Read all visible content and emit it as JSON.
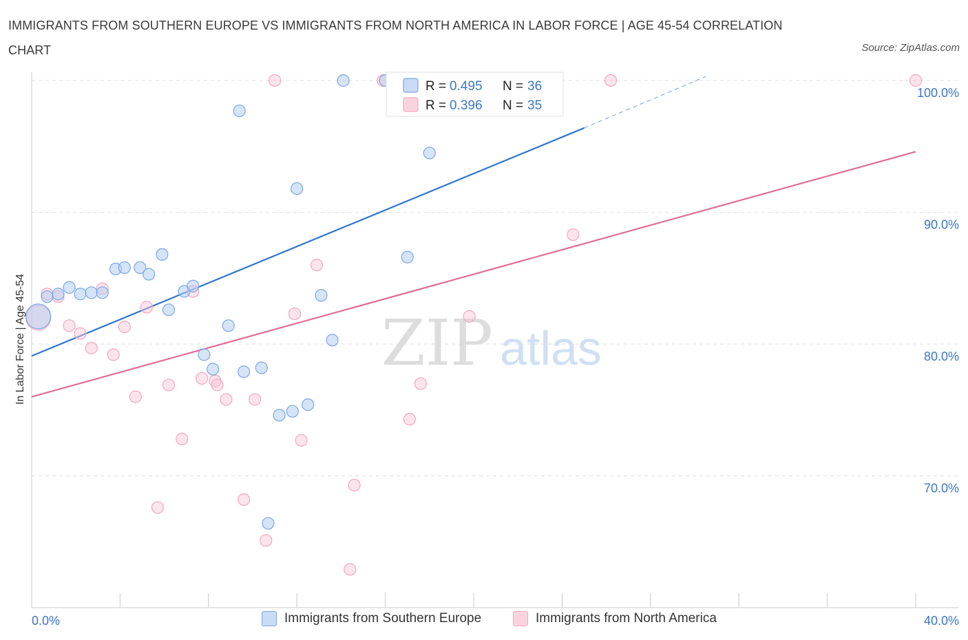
{
  "title": "IMMIGRANTS FROM SOUTHERN EUROPE VS IMMIGRANTS FROM NORTH AMERICA IN LABOR FORCE | AGE 45-54 CORRELATION CHART",
  "source": "Source: ZipAtlas.com",
  "watermark": {
    "zip": "ZIP",
    "atlas": "atlas"
  },
  "legend_stats": {
    "r_label": "R =",
    "n_label": "N =",
    "items": [
      {
        "r": "0.495",
        "n": "36"
      },
      {
        "r": "0.396",
        "n": "35"
      }
    ]
  },
  "chart_data": {
    "type": "scatter",
    "title": "IMMIGRANTS FROM SOUTHERN EUROPE VS IMMIGRANTS FROM NORTH AMERICA IN LABOR FORCE | AGE 45-54 CORRELATION CHART",
    "xlabel": "",
    "ylabel": "In Labor Force | Age 45-54",
    "xlim": [
      0,
      40
    ],
    "ylim": [
      60,
      100
    ],
    "x_tick_labels": [
      "0.0%",
      "40.0%"
    ],
    "y_ticks": [
      70,
      80,
      90,
      100
    ],
    "y_tick_labels": [
      "70.0%",
      "80.0%",
      "90.0%",
      "100.0%"
    ],
    "grid": true,
    "legend_position": "bottom",
    "series": [
      {
        "name": "Immigrants from Southern Europe",
        "color": "#7aa7e6",
        "line_color": "#2f74d0",
        "r": 0.495,
        "n": 36,
        "trend": {
          "x": [
            0,
            25
          ],
          "y": [
            79.1,
            96.4
          ],
          "dashed_to": [
            30.5,
            100.3
          ]
        },
        "points": [
          {
            "x": 0.3,
            "y": 82.1,
            "big": true
          },
          {
            "x": 0.7,
            "y": 83.6
          },
          {
            "x": 1.2,
            "y": 83.8
          },
          {
            "x": 1.7,
            "y": 84.3
          },
          {
            "x": 2.2,
            "y": 83.8
          },
          {
            "x": 2.7,
            "y": 83.9
          },
          {
            "x": 3.2,
            "y": 83.9
          },
          {
            "x": 3.8,
            "y": 85.7
          },
          {
            "x": 4.2,
            "y": 85.8
          },
          {
            "x": 4.9,
            "y": 85.8
          },
          {
            "x": 5.3,
            "y": 85.3
          },
          {
            "x": 5.9,
            "y": 86.8
          },
          {
            "x": 6.2,
            "y": 82.6
          },
          {
            "x": 6.9,
            "y": 84.0
          },
          {
            "x": 7.3,
            "y": 84.4
          },
          {
            "x": 7.8,
            "y": 79.2
          },
          {
            "x": 8.2,
            "y": 78.1
          },
          {
            "x": 8.9,
            "y": 81.4
          },
          {
            "x": 9.4,
            "y": 97.7
          },
          {
            "x": 9.6,
            "y": 77.9
          },
          {
            "x": 10.4,
            "y": 78.2
          },
          {
            "x": 11.2,
            "y": 74.6
          },
          {
            "x": 11.8,
            "y": 74.9
          },
          {
            "x": 12.0,
            "y": 91.8
          },
          {
            "x": 12.5,
            "y": 75.4
          },
          {
            "x": 13.1,
            "y": 83.7
          },
          {
            "x": 13.6,
            "y": 80.3
          },
          {
            "x": 14.1,
            "y": 100.0
          },
          {
            "x": 16.0,
            "y": 100.0
          },
          {
            "x": 17.0,
            "y": 86.6
          },
          {
            "x": 18.0,
            "y": 94.5
          },
          {
            "x": 19.0,
            "y": 100.0
          },
          {
            "x": 19.4,
            "y": 100.0
          },
          {
            "x": 21.8,
            "y": 100.0
          },
          {
            "x": 22.1,
            "y": 100.0
          },
          {
            "x": 10.7,
            "y": 66.4
          }
        ]
      },
      {
        "name": "Immigrants from North America",
        "color": "#f2a7be",
        "line_color": "#e06b96",
        "r": 0.396,
        "n": 35,
        "trend": {
          "x": [
            0,
            40
          ],
          "y": [
            76.0,
            94.6
          ]
        },
        "points": [
          {
            "x": 0.3,
            "y": 82.0,
            "big": true
          },
          {
            "x": 0.7,
            "y": 83.8
          },
          {
            "x": 1.2,
            "y": 83.6
          },
          {
            "x": 1.7,
            "y": 81.4
          },
          {
            "x": 2.2,
            "y": 80.8
          },
          {
            "x": 2.7,
            "y": 79.7
          },
          {
            "x": 3.2,
            "y": 84.2
          },
          {
            "x": 3.7,
            "y": 79.2
          },
          {
            "x": 4.2,
            "y": 81.3
          },
          {
            "x": 4.7,
            "y": 76.0
          },
          {
            "x": 5.2,
            "y": 82.8
          },
          {
            "x": 5.7,
            "y": 67.6
          },
          {
            "x": 6.2,
            "y": 76.9
          },
          {
            "x": 6.8,
            "y": 72.8
          },
          {
            "x": 7.3,
            "y": 84.0
          },
          {
            "x": 7.7,
            "y": 77.4
          },
          {
            "x": 8.3,
            "y": 77.2
          },
          {
            "x": 8.8,
            "y": 75.8
          },
          {
            "x": 9.6,
            "y": 68.2
          },
          {
            "x": 10.1,
            "y": 75.8
          },
          {
            "x": 10.6,
            "y": 65.1
          },
          {
            "x": 11.0,
            "y": 100.0
          },
          {
            "x": 11.9,
            "y": 82.3
          },
          {
            "x": 12.2,
            "y": 72.7
          },
          {
            "x": 12.9,
            "y": 86.0
          },
          {
            "x": 14.4,
            "y": 62.9
          },
          {
            "x": 14.6,
            "y": 69.3
          },
          {
            "x": 15.9,
            "y": 100.0
          },
          {
            "x": 17.1,
            "y": 74.3
          },
          {
            "x": 17.6,
            "y": 77.0
          },
          {
            "x": 19.8,
            "y": 82.1
          },
          {
            "x": 24.5,
            "y": 88.3
          },
          {
            "x": 26.2,
            "y": 100.0
          },
          {
            "x": 40.0,
            "y": 100.0
          },
          {
            "x": 8.4,
            "y": 76.9
          }
        ]
      }
    ]
  }
}
